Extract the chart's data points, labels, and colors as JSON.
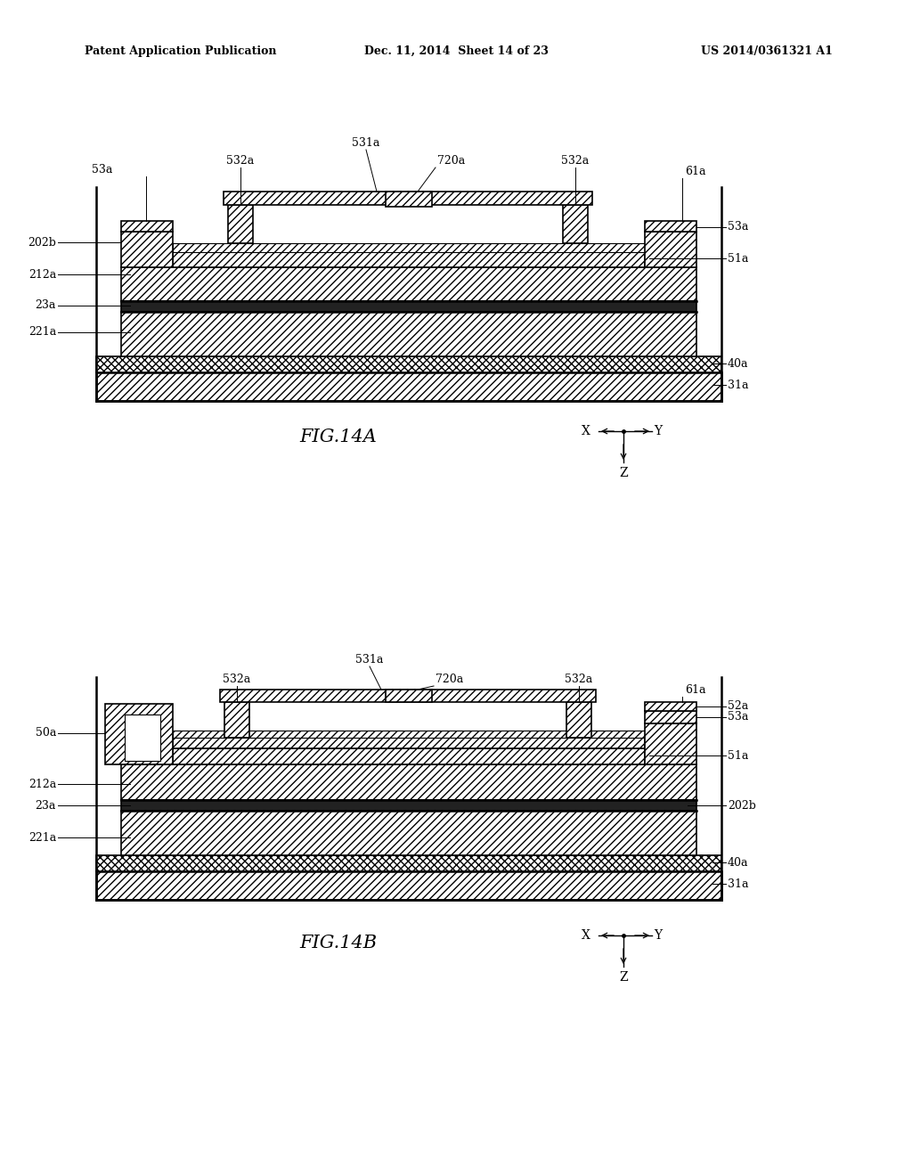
{
  "bg_color": "#ffffff",
  "header_left": "Patent Application Publication",
  "header_center": "Dec. 11, 2014  Sheet 14 of 23",
  "header_right": "US 2014/0361321 A1",
  "fig_a_label": "FIG.14A",
  "fig_b_label": "FIG.14B"
}
